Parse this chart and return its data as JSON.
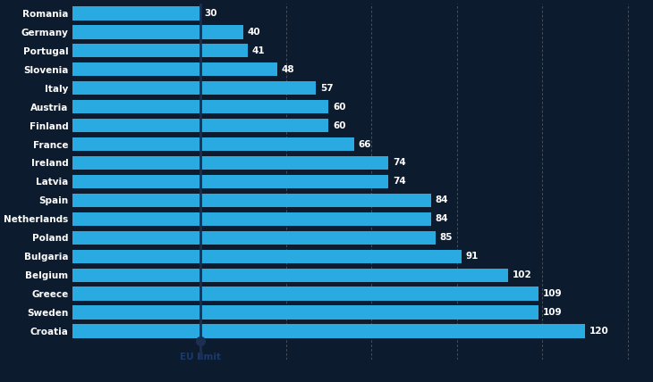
{
  "categories": [
    "Romania",
    "Germany",
    "Portugal",
    "Slovenia",
    "Italy",
    "Austria",
    "Finland",
    "France",
    "Ireland",
    "Latvia",
    "Spain",
    "Netherlands",
    "Poland",
    "Bulgaria",
    "Belgium",
    "Greece",
    "Sweden",
    "Croatia"
  ],
  "values": [
    30,
    40,
    41,
    48,
    57,
    60,
    60,
    66,
    74,
    74,
    84,
    84,
    85,
    91,
    102,
    109,
    109,
    120
  ],
  "bar_color": "#29ABE2",
  "background_color": "#0d1b2e",
  "label_color": "#ffffff",
  "value_color": "#ffffff",
  "eu_limit_value": 30,
  "eu_limit_label": "EU limit",
  "eu_line_color": "#1a2f52",
  "eu_dot_color": "#1a2f52",
  "grid_color": "#aaaaaa",
  "grid_positions": [
    30,
    50,
    70,
    90,
    110,
    130
  ],
  "xlim_max": 135,
  "bar_height": 0.75,
  "figsize": [
    7.3,
    4.28
  ],
  "dpi": 100,
  "label_fontsize": 7.5,
  "value_fontsize": 7.5
}
